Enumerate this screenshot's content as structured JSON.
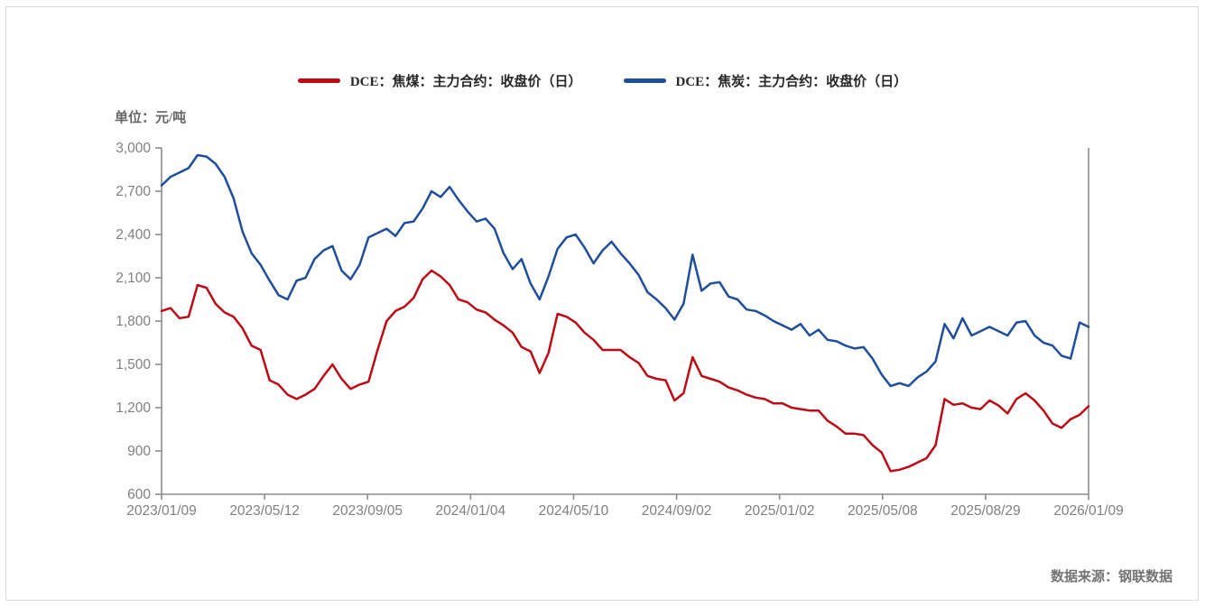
{
  "page": {
    "background": "#ffffff",
    "border_color": "#d9d9d9"
  },
  "unit_label": "单位：元/吨",
  "source_label": "数据来源：钢联数据",
  "legend": {
    "items": [
      {
        "label": "DCE：焦煤：主力合约：收盘价（日）",
        "color": "#bd0a14"
      },
      {
        "label": "DCE：焦炭：主力合约：收盘价（日）",
        "color": "#1f4e9b"
      }
    ]
  },
  "chart_data": {
    "type": "line",
    "title": "",
    "xlabel": "",
    "ylabel": "单位：元/吨",
    "ylim": [
      600,
      3000
    ],
    "grid": false,
    "legend_position": "top-center",
    "x_range": [
      "2023/01/09",
      "2026/01/09"
    ],
    "x_tick_labels": [
      "2023/01/09",
      "2023/05/12",
      "2023/09/05",
      "2024/01/04",
      "2024/05/10",
      "2024/09/02",
      "2025/01/02",
      "2025/05/08",
      "2025/08/29",
      "2026/01/09"
    ],
    "y_ticks": [
      {
        "value": 3000,
        "label": "3,000"
      },
      {
        "value": 2700,
        "label": "2,700"
      },
      {
        "value": 2400,
        "label": "2,400"
      },
      {
        "value": 2100,
        "label": "2,100"
      },
      {
        "value": 1800,
        "label": "1,800"
      },
      {
        "value": 1500,
        "label": "1,500"
      },
      {
        "value": 1200,
        "label": "1,200"
      },
      {
        "value": 900,
        "label": "900"
      },
      {
        "value": 600,
        "label": "600"
      }
    ],
    "series": [
      {
        "name": "DCE：焦煤：主力合约：收盘价（日）",
        "color": "#bd0a14",
        "values": [
          1870,
          1890,
          1820,
          1830,
          2050,
          2030,
          1920,
          1860,
          1830,
          1750,
          1630,
          1600,
          1390,
          1360,
          1290,
          1260,
          1290,
          1330,
          1420,
          1500,
          1400,
          1330,
          1360,
          1380,
          1600,
          1800,
          1870,
          1900,
          1960,
          2090,
          2150,
          2110,
          2050,
          1950,
          1930,
          1880,
          1860,
          1810,
          1770,
          1720,
          1620,
          1590,
          1440,
          1580,
          1850,
          1830,
          1790,
          1720,
          1670,
          1600,
          1600,
          1600,
          1550,
          1510,
          1420,
          1400,
          1390,
          1250,
          1300,
          1550,
          1420,
          1400,
          1380,
          1340,
          1320,
          1290,
          1270,
          1260,
          1230,
          1230,
          1200,
          1190,
          1180,
          1180,
          1110,
          1070,
          1020,
          1020,
          1010,
          940,
          890,
          760,
          770,
          790,
          820,
          850,
          940,
          1260,
          1220,
          1230,
          1200,
          1190,
          1250,
          1215,
          1160,
          1260,
          1300,
          1250,
          1180,
          1090,
          1060,
          1120,
          1150,
          1210
        ]
      },
      {
        "name": "DCE：焦炭：主力合约：收盘价（日）",
        "color": "#1f4e9b",
        "values": [
          2740,
          2800,
          2830,
          2860,
          2950,
          2940,
          2890,
          2800,
          2650,
          2420,
          2270,
          2190,
          2080,
          1980,
          1950,
          2080,
          2100,
          2230,
          2290,
          2320,
          2150,
          2090,
          2190,
          2380,
          2410,
          2440,
          2390,
          2480,
          2490,
          2580,
          2700,
          2660,
          2730,
          2640,
          2560,
          2490,
          2510,
          2440,
          2270,
          2160,
          2230,
          2060,
          1950,
          2110,
          2300,
          2380,
          2400,
          2310,
          2200,
          2290,
          2350,
          2270,
          2200,
          2120,
          2000,
          1950,
          1890,
          1810,
          1920,
          2260,
          2010,
          2060,
          2070,
          1970,
          1950,
          1880,
          1870,
          1840,
          1800,
          1770,
          1740,
          1780,
          1700,
          1740,
          1670,
          1660,
          1630,
          1610,
          1620,
          1540,
          1430,
          1350,
          1370,
          1350,
          1410,
          1450,
          1520,
          1780,
          1680,
          1820,
          1700,
          1730,
          1760,
          1730,
          1700,
          1790,
          1800,
          1700,
          1650,
          1630,
          1560,
          1540,
          1790,
          1760
        ]
      }
    ]
  }
}
